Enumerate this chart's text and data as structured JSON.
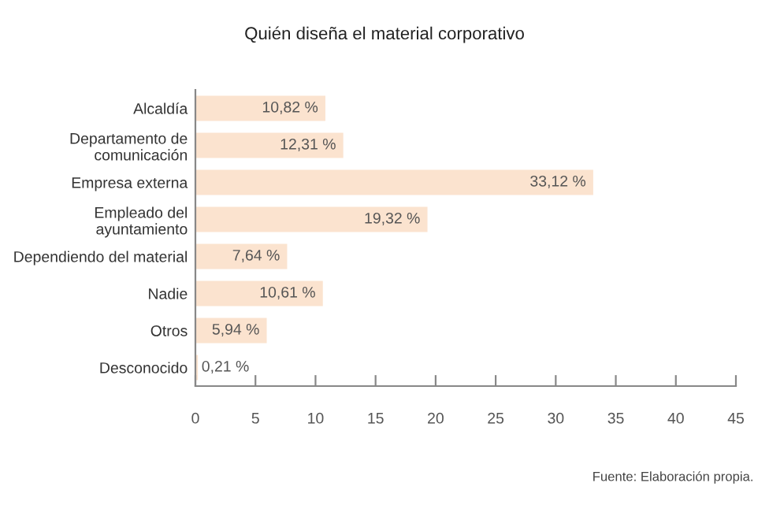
{
  "chart_data": {
    "type": "bar",
    "orientation": "horizontal",
    "title": "Quién diseña el material corporativo",
    "categories": [
      "Alcaldía",
      "Departamento de\ncomunicación",
      "Empresa externa",
      "Empleado del\nayuntamiento",
      "Dependiendo del material",
      "Nadie",
      "Otros",
      "Desconocido"
    ],
    "values": [
      10.82,
      12.31,
      33.12,
      19.32,
      7.64,
      10.61,
      5.94,
      0.21
    ],
    "value_labels": [
      "10,82 %",
      "12,31 %",
      "33,12 %",
      "19,32 %",
      "7,64 %",
      "10,61 %",
      "5,94 %",
      "0,21 %"
    ],
    "color": "#fbe3cf",
    "xlim": [
      0,
      45
    ],
    "xticks": [
      0,
      5,
      10,
      15,
      20,
      25,
      30,
      35,
      40,
      45
    ],
    "grid": false,
    "legend": false,
    "annotations": [
      "Fuente: Elaboración propia."
    ]
  }
}
